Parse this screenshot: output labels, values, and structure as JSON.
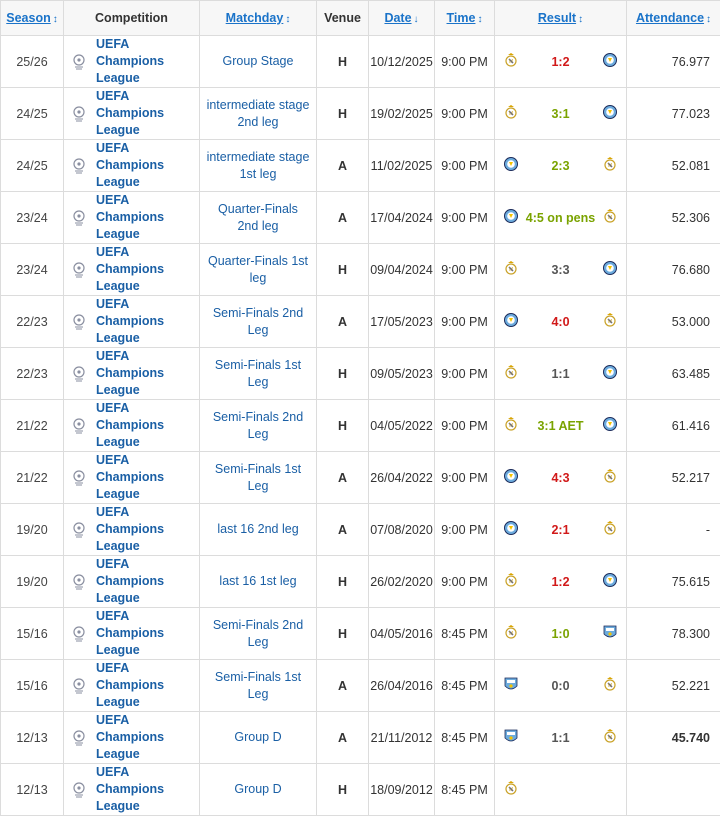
{
  "colors": {
    "loss": "#d11919",
    "win": "#7aa300",
    "draw": "#555555",
    "link": "#1a73c9"
  },
  "header": {
    "season": "Season",
    "competition": "Competition",
    "matchday": "Matchday",
    "venue": "Venue",
    "date": "Date",
    "time": "Time",
    "result": "Result",
    "attendance": "Attendance"
  },
  "rows": [
    {
      "season": "25/26",
      "competition": "UEFA Champions League",
      "matchday": "Group Stage",
      "venue": "H",
      "date": "10/12/2025",
      "time": "9:00 PM",
      "home_crest": "real-madrid-crest",
      "away_crest": "man-city-crest",
      "score": "1:2",
      "result_color": "red",
      "attendance": "76.977"
    },
    {
      "season": "24/25",
      "competition": "UEFA Champions League",
      "matchday": "intermediate stage 2nd leg",
      "venue": "H",
      "date": "19/02/2025",
      "time": "9:00 PM",
      "home_crest": "real-madrid-crest",
      "away_crest": "man-city-crest",
      "score": "3:1",
      "result_color": "green",
      "attendance": "77.023"
    },
    {
      "season": "24/25",
      "competition": "UEFA Champions League",
      "matchday": "intermediate stage 1st leg",
      "venue": "A",
      "date": "11/02/2025",
      "time": "9:00 PM",
      "home_crest": "man-city-crest",
      "away_crest": "real-madrid-crest",
      "score": "2:3",
      "result_color": "green",
      "attendance": "52.081"
    },
    {
      "season": "23/24",
      "competition": "UEFA Champions League",
      "matchday": "Quarter-Finals 2nd leg",
      "venue": "A",
      "date": "17/04/2024",
      "time": "9:00 PM",
      "home_crest": "man-city-crest",
      "away_crest": "real-madrid-crest",
      "score": "4:5 on pens",
      "result_color": "green",
      "attendance": "52.306"
    },
    {
      "season": "23/24",
      "competition": "UEFA Champions League",
      "matchday": "Quarter-Finals 1st leg",
      "venue": "H",
      "date": "09/04/2024",
      "time": "9:00 PM",
      "home_crest": "real-madrid-crest",
      "away_crest": "man-city-crest",
      "score": "3:3",
      "result_color": "gray",
      "attendance": "76.680"
    },
    {
      "season": "22/23",
      "competition": "UEFA Champions League",
      "matchday": "Semi-Finals 2nd Leg",
      "venue": "A",
      "date": "17/05/2023",
      "time": "9:00 PM",
      "home_crest": "man-city-crest",
      "away_crest": "real-madrid-crest",
      "score": "4:0",
      "result_color": "red",
      "attendance": "53.000"
    },
    {
      "season": "22/23",
      "competition": "UEFA Champions League",
      "matchday": "Semi-Finals 1st Leg",
      "venue": "H",
      "date": "09/05/2023",
      "time": "9:00 PM",
      "home_crest": "real-madrid-crest",
      "away_crest": "man-city-crest",
      "score": "1:1",
      "result_color": "gray",
      "attendance": "63.485"
    },
    {
      "season": "21/22",
      "competition": "UEFA Champions League",
      "matchday": "Semi-Finals 2nd Leg",
      "venue": "H",
      "date": "04/05/2022",
      "time": "9:00 PM",
      "home_crest": "real-madrid-crest",
      "away_crest": "man-city-crest",
      "score": "3:1 AET",
      "result_color": "green",
      "attendance": "61.416"
    },
    {
      "season": "21/22",
      "competition": "UEFA Champions League",
      "matchday": "Semi-Finals 1st Leg",
      "venue": "A",
      "date": "26/04/2022",
      "time": "9:00 PM",
      "home_crest": "man-city-crest",
      "away_crest": "real-madrid-crest",
      "score": "4:3",
      "result_color": "red",
      "attendance": "52.217"
    },
    {
      "season": "19/20",
      "competition": "UEFA Champions League",
      "matchday": "last 16 2nd leg",
      "venue": "A",
      "date": "07/08/2020",
      "time": "9:00 PM",
      "home_crest": "man-city-crest",
      "away_crest": "real-madrid-crest",
      "score": "2:1",
      "result_color": "red",
      "attendance": "-"
    },
    {
      "season": "19/20",
      "competition": "UEFA Champions League",
      "matchday": "last 16 1st leg",
      "venue": "H",
      "date": "26/02/2020",
      "time": "9:00 PM",
      "home_crest": "real-madrid-crest",
      "away_crest": "man-city-crest",
      "score": "1:2",
      "result_color": "red",
      "attendance": "75.615"
    },
    {
      "season": "15/16",
      "competition": "UEFA Champions League",
      "matchday": "Semi-Finals 2nd Leg",
      "venue": "H",
      "date": "04/05/2016",
      "time": "8:45 PM",
      "home_crest": "real-madrid-crest",
      "away_crest": "man-city-old-crest",
      "score": "1:0",
      "result_color": "green",
      "attendance": "78.300"
    },
    {
      "season": "15/16",
      "competition": "UEFA Champions League",
      "matchday": "Semi-Finals 1st Leg",
      "venue": "A",
      "date": "26/04/2016",
      "time": "8:45 PM",
      "home_crest": "man-city-old-crest",
      "away_crest": "real-madrid-crest",
      "score": "0:0",
      "result_color": "gray",
      "attendance": "52.221"
    },
    {
      "season": "12/13",
      "competition": "UEFA Champions League",
      "matchday": "Group D",
      "venue": "A",
      "date": "21/11/2012",
      "time": "8:45 PM",
      "home_crest": "man-city-old-crest",
      "away_crest": "real-madrid-crest",
      "score": "1:1",
      "result_color": "gray",
      "attendance": "45.740",
      "attendance_bold": true
    },
    {
      "season": "12/13",
      "competition": "UEFA Champions League",
      "matchday": "Group D",
      "venue": "H",
      "date": "18/09/2012",
      "time": "8:45 PM",
      "home_crest": "real-madrid-crest",
      "away_crest": "",
      "score": "",
      "result_color": "gray",
      "attendance": ""
    }
  ]
}
